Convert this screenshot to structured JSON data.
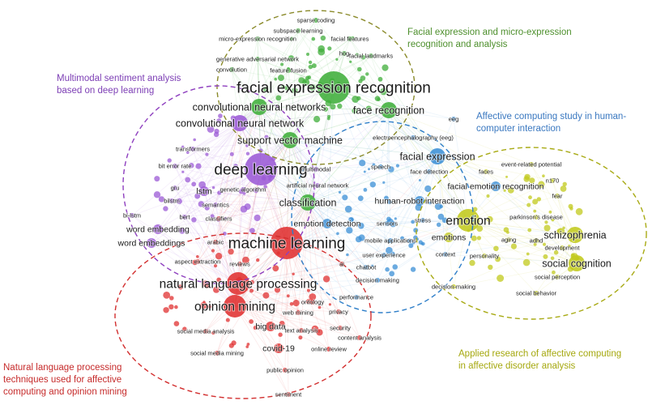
{
  "colors": {
    "green": "#3fae3a",
    "purple": "#9b59d6",
    "blue": "#3b8fd6",
    "yellow": "#c2c91c",
    "red": "#e03030",
    "label_green": "#4d8f2c",
    "label_purple": "#7d3fb5",
    "label_blue": "#3a78c0",
    "label_yellow": "#a5a80e",
    "label_red": "#c62b2b"
  },
  "cluster_labels": {
    "green": [
      "Facial expression and micro-expression",
      "recognition and analysis"
    ],
    "purple": [
      "Multimodal sentiment analysis",
      "based on deep learning"
    ],
    "blue": [
      "Affective computing study in human-",
      "computer interaction"
    ],
    "yellow": [
      "Applied research of affective computing",
      "in affective disorder analysis"
    ],
    "red": [
      "Natural language processing",
      "techniques used for affective",
      "computing and opinion mining"
    ]
  },
  "terms": [
    {
      "text": "facial expression recognition",
      "cluster": "green",
      "weight": 5
    },
    {
      "text": "convolutional neural networks",
      "cluster": "green",
      "weight": 3
    },
    {
      "text": "face recognition",
      "cluster": "green",
      "weight": 3
    },
    {
      "text": "support vector machine",
      "cluster": "green",
      "weight": 3
    },
    {
      "text": "feature fusion",
      "cluster": "green",
      "weight": 1
    },
    {
      "text": "generative adversarial network",
      "cluster": "green",
      "weight": 1
    },
    {
      "text": "micro-expression recognition",
      "cluster": "green",
      "weight": 1
    },
    {
      "text": "subspace learning",
      "cluster": "green",
      "weight": 1
    },
    {
      "text": "sparse coding",
      "cluster": "green",
      "weight": 1
    },
    {
      "text": "facial features",
      "cluster": "green",
      "weight": 1
    },
    {
      "text": "facial landmarks",
      "cluster": "green",
      "weight": 1
    },
    {
      "text": "convolution",
      "cluster": "green",
      "weight": 1
    },
    {
      "text": "hog",
      "cluster": "green",
      "weight": 1
    },
    {
      "text": "classification",
      "cluster": "green",
      "weight": 3
    },
    {
      "text": "convolutional neural network",
      "cluster": "purple",
      "weight": 3
    },
    {
      "text": "deep learning",
      "cluster": "purple",
      "weight": 5
    },
    {
      "text": "transformers",
      "cluster": "purple",
      "weight": 1
    },
    {
      "text": "bit error rate",
      "cluster": "purple",
      "weight": 1
    },
    {
      "text": "lstm",
      "cluster": "purple",
      "weight": 2
    },
    {
      "text": "gru",
      "cluster": "purple",
      "weight": 1
    },
    {
      "text": "bilstm",
      "cluster": "purple",
      "weight": 1
    },
    {
      "text": "bi-lstm",
      "cluster": "purple",
      "weight": 1
    },
    {
      "text": "bert",
      "cluster": "purple",
      "weight": 1
    },
    {
      "text": "semantics",
      "cluster": "purple",
      "weight": 1
    },
    {
      "text": "genetic algorithm",
      "cluster": "purple",
      "weight": 1
    },
    {
      "text": "multimodal",
      "cluster": "purple",
      "weight": 1
    },
    {
      "text": "artificial neural network",
      "cluster": "purple",
      "weight": 1
    },
    {
      "text": "word embedding",
      "cluster": "purple",
      "weight": 2
    },
    {
      "text": "word embeddings",
      "cluster": "purple",
      "weight": 2
    },
    {
      "text": "facial expression",
      "cluster": "blue",
      "weight": 3
    },
    {
      "text": "eeg",
      "cluster": "blue",
      "weight": 1
    },
    {
      "text": "electroencephalography (eeg)",
      "cluster": "blue",
      "weight": 1
    },
    {
      "text": "face detection",
      "cluster": "blue",
      "weight": 1
    },
    {
      "text": "speech",
      "cluster": "blue",
      "weight": 1
    },
    {
      "text": "facial emotion recognition",
      "cluster": "blue",
      "weight": 2
    },
    {
      "text": "human-robot interaction",
      "cluster": "blue",
      "weight": 2
    },
    {
      "text": "emotion detection",
      "cluster": "blue",
      "weight": 2
    },
    {
      "text": "sensors",
      "cluster": "blue",
      "weight": 1
    },
    {
      "text": "stress",
      "cluster": "blue",
      "weight": 1
    },
    {
      "text": "mobile applications",
      "cluster": "blue",
      "weight": 1
    },
    {
      "text": "user experience",
      "cluster": "blue",
      "weight": 1
    },
    {
      "text": "chatbot",
      "cluster": "blue",
      "weight": 1
    },
    {
      "text": "decision making",
      "cluster": "blue",
      "weight": 1
    },
    {
      "text": "performance",
      "cluster": "blue",
      "weight": 1
    },
    {
      "text": "context",
      "cluster": "blue",
      "weight": 1
    },
    {
      "text": "emotion",
      "cluster": "yellow",
      "weight": 4
    },
    {
      "text": "emotions",
      "cluster": "yellow",
      "weight": 2
    },
    {
      "text": "personality",
      "cluster": "yellow",
      "weight": 1
    },
    {
      "text": "decision-making",
      "cluster": "yellow",
      "weight": 1
    },
    {
      "text": "faces",
      "cluster": "yellow",
      "weight": 1
    },
    {
      "text": "event-related potential",
      "cluster": "yellow",
      "weight": 1
    },
    {
      "text": "n170",
      "cluster": "yellow",
      "weight": 1
    },
    {
      "text": "fear",
      "cluster": "yellow",
      "weight": 1
    },
    {
      "text": "parkinson's disease",
      "cluster": "yellow",
      "weight": 1
    },
    {
      "text": "schizophrenia",
      "cluster": "yellow",
      "weight": 3
    },
    {
      "text": "aging",
      "cluster": "yellow",
      "weight": 1
    },
    {
      "text": "adhd",
      "cluster": "yellow",
      "weight": 1
    },
    {
      "text": "development",
      "cluster": "yellow",
      "weight": 1
    },
    {
      "text": "social cognition",
      "cluster": "yellow",
      "weight": 3
    },
    {
      "text": "social perception",
      "cluster": "yellow",
      "weight": 1
    },
    {
      "text": "social behavior",
      "cluster": "yellow",
      "weight": 1
    },
    {
      "text": "machine learning",
      "cluster": "red",
      "weight": 5
    },
    {
      "text": "natural language processing",
      "cluster": "red",
      "weight": 4
    },
    {
      "text": "opinion mining",
      "cluster": "red",
      "weight": 4
    },
    {
      "text": "big data",
      "cluster": "red",
      "weight": 2
    },
    {
      "text": "covid-19",
      "cluster": "red",
      "weight": 2
    },
    {
      "text": "social media analysis",
      "cluster": "red",
      "weight": 1
    },
    {
      "text": "social media mining",
      "cluster": "red",
      "weight": 1
    },
    {
      "text": "text analysis",
      "cluster": "red",
      "weight": 1
    },
    {
      "text": "web mining",
      "cluster": "red",
      "weight": 1
    },
    {
      "text": "ontology",
      "cluster": "red",
      "weight": 1
    },
    {
      "text": "privacy",
      "cluster": "red",
      "weight": 1
    },
    {
      "text": "security",
      "cluster": "red",
      "weight": 1
    },
    {
      "text": "content analysis",
      "cluster": "red",
      "weight": 1
    },
    {
      "text": "online review",
      "cluster": "red",
      "weight": 1
    },
    {
      "text": "public opinion",
      "cluster": "red",
      "weight": 1
    },
    {
      "text": "aspect extraction",
      "cluster": "red",
      "weight": 1
    },
    {
      "text": "reviews",
      "cluster": "red",
      "weight": 1
    },
    {
      "text": "arabic",
      "cluster": "red",
      "weight": 1
    },
    {
      "text": "classifiers",
      "cluster": "red",
      "weight": 1
    },
    {
      "text": "ai",
      "cluster": "red",
      "weight": 1
    },
    {
      "text": "sentiment",
      "cluster": "red",
      "weight": 1
    }
  ]
}
